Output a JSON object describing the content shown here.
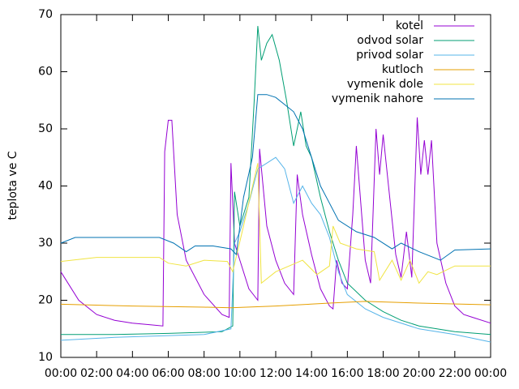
{
  "chart_data": {
    "type": "line",
    "ylabel": "teplota ve C",
    "xlim": [
      0,
      24
    ],
    "ylim": [
      10,
      70
    ],
    "yticks": [
      10,
      20,
      30,
      40,
      50,
      60,
      70
    ],
    "xticks": [
      {
        "value": 0,
        "label": "00:00"
      },
      {
        "value": 2,
        "label": "02:00"
      },
      {
        "value": 4,
        "label": "04:00"
      },
      {
        "value": 6,
        "label": "06:00"
      },
      {
        "value": 8,
        "label": "08:00"
      },
      {
        "value": 10,
        "label": "10:00"
      },
      {
        "value": 12,
        "label": "12:00"
      },
      {
        "value": 14,
        "label": "14:00"
      },
      {
        "value": 16,
        "label": "16:00"
      },
      {
        "value": 18,
        "label": "18:00"
      },
      {
        "value": 20,
        "label": "20:00"
      },
      {
        "value": 22,
        "label": "22:00"
      },
      {
        "value": 24,
        "label": "00:00"
      }
    ],
    "legend": "top-right",
    "series": [
      {
        "name": "kotel",
        "color": "#9400d3",
        "x": [
          0,
          1,
          2,
          3,
          4,
          5,
          5.7,
          5.8,
          6.0,
          6.2,
          6.5,
          7,
          8,
          9,
          9.4,
          9.5,
          9.7,
          10,
          10.5,
          11,
          11.1,
          11.5,
          12,
          12.5,
          13,
          13.2,
          13.5,
          14,
          14.5,
          15,
          15.2,
          15.4,
          15.7,
          16,
          16.3,
          16.5,
          16.8,
          17,
          17.3,
          17.6,
          17.8,
          18,
          18.3,
          18.7,
          19,
          19.3,
          19.6,
          19.9,
          20.1,
          20.3,
          20.5,
          20.7,
          21,
          21.5,
          22,
          22.5,
          23,
          24
        ],
        "values": [
          25,
          20,
          17.5,
          16.5,
          16,
          15.7,
          15.5,
          46,
          51.5,
          51.5,
          35,
          27,
          21,
          17.5,
          17,
          44,
          30,
          27,
          22,
          20,
          46.5,
          33,
          27,
          23,
          21,
          42,
          35,
          28,
          22,
          19,
          18.5,
          27,
          23,
          22,
          35,
          47,
          35,
          27,
          23,
          50,
          42,
          49,
          40,
          28,
          24,
          32,
          24,
          52,
          42,
          48,
          42,
          48,
          30,
          23,
          19,
          17.5,
          17,
          16
        ]
      },
      {
        "name": "odvod solar",
        "color": "#009e73",
        "x": [
          0,
          3,
          6,
          9,
          9.6,
          9.7,
          10,
          10.5,
          10.8,
          11,
          11.2,
          11.5,
          11.8,
          12.2,
          12.6,
          13,
          13.4,
          13.7,
          14,
          14.5,
          15,
          15.5,
          16,
          17,
          18,
          19,
          20,
          22,
          24
        ],
        "values": [
          14,
          14,
          14.2,
          14.5,
          15.5,
          39,
          33,
          38,
          55,
          68,
          62,
          65,
          66.5,
          62,
          55,
          47,
          53,
          47,
          45,
          38,
          32,
          27,
          23,
          20,
          18,
          16.5,
          15.5,
          14.5,
          14
        ]
      },
      {
        "name": "privod solar",
        "color": "#56b4e9",
        "x": [
          0,
          3,
          8,
          9.5,
          9.7,
          10,
          10.5,
          11,
          11.5,
          12,
          12.5,
          13,
          13.5,
          14,
          14.5,
          15,
          15.5,
          16,
          17,
          18,
          20,
          22,
          24
        ],
        "values": [
          13,
          13.5,
          14,
          15,
          30,
          32,
          37,
          43,
          44,
          45,
          43,
          37,
          40,
          37,
          35,
          31,
          25,
          21,
          18.5,
          17,
          15,
          14,
          12.7
        ]
      },
      {
        "name": "kutloch",
        "color": "#e69f00",
        "x": [
          0,
          4,
          8,
          9.5,
          12,
          15,
          17,
          20,
          24
        ],
        "values": [
          19.3,
          19,
          18.8,
          18.7,
          19,
          19.5,
          19.8,
          19.5,
          19.2
        ]
      },
      {
        "name": "vymenik dole",
        "color": "#f0e442",
        "x": [
          0,
          2,
          5.5,
          6,
          7,
          8,
          9.3,
          9.6,
          10.2,
          11,
          11.2,
          12,
          13.5,
          14.3,
          15,
          15.2,
          15.6,
          16.5,
          17.5,
          17.8,
          18.5,
          19,
          19.5,
          20,
          20.5,
          21,
          22,
          24
        ],
        "values": [
          26.8,
          27.5,
          27.5,
          26.5,
          26,
          27,
          26.8,
          25,
          33,
          44,
          23,
          25,
          27,
          24.5,
          26,
          33,
          30,
          29,
          28.5,
          23.5,
          27,
          23.5,
          27,
          23,
          25,
          24.5,
          26,
          26
        ]
      },
      {
        "name": "vymenik nahore",
        "color": "#0072b2",
        "x": [
          0,
          0.8,
          5.5,
          6.3,
          7,
          7.5,
          8.5,
          9.5,
          9.8,
          10.2,
          10.7,
          11,
          11.5,
          12,
          13,
          13.5,
          14,
          14.5,
          15,
          15.5,
          16.5,
          17.5,
          18.5,
          19,
          20,
          21.2,
          22,
          24
        ],
        "values": [
          30,
          31,
          31,
          30,
          28.5,
          29.5,
          29.5,
          29,
          28,
          38,
          45,
          56,
          56,
          55.5,
          53,
          50,
          45,
          40,
          37,
          34,
          32,
          31,
          29,
          30,
          28.5,
          27,
          28.8,
          29
        ]
      }
    ]
  }
}
